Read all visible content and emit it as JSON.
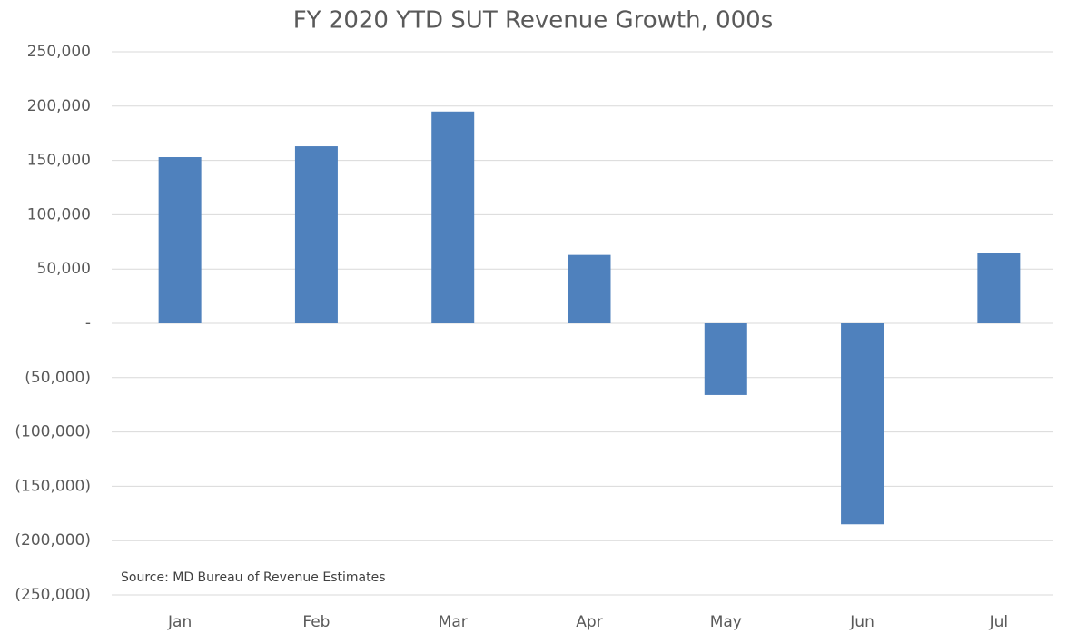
{
  "chart_data": {
    "type": "bar",
    "title": "FY 2020 YTD SUT Revenue Growth, 000s",
    "annotation": "Source: MD Bureau of Revenue Estimates",
    "categories": [
      "Jan",
      "Feb",
      "Mar",
      "Apr",
      "May",
      "Jun",
      "Jul"
    ],
    "values": [
      153000,
      163000,
      195000,
      63000,
      -66000,
      -185000,
      65000
    ],
    "color": "#4f81bd",
    "ylim": [
      -250000,
      250000
    ],
    "yticks": [
      {
        "value": -250000,
        "label": "(250,000)"
      },
      {
        "value": -200000,
        "label": "(200,000)"
      },
      {
        "value": -150000,
        "label": "(150,000)"
      },
      {
        "value": -100000,
        "label": "(100,000)"
      },
      {
        "value": -50000,
        "label": "(50,000)"
      },
      {
        "value": 0,
        "label": "-"
      },
      {
        "value": 50000,
        "label": "50,000"
      },
      {
        "value": 100000,
        "label": "100,000"
      },
      {
        "value": 150000,
        "label": "150,000"
      },
      {
        "value": 200000,
        "label": "200,000"
      },
      {
        "value": 250000,
        "label": "250,000"
      }
    ],
    "grid": true
  }
}
